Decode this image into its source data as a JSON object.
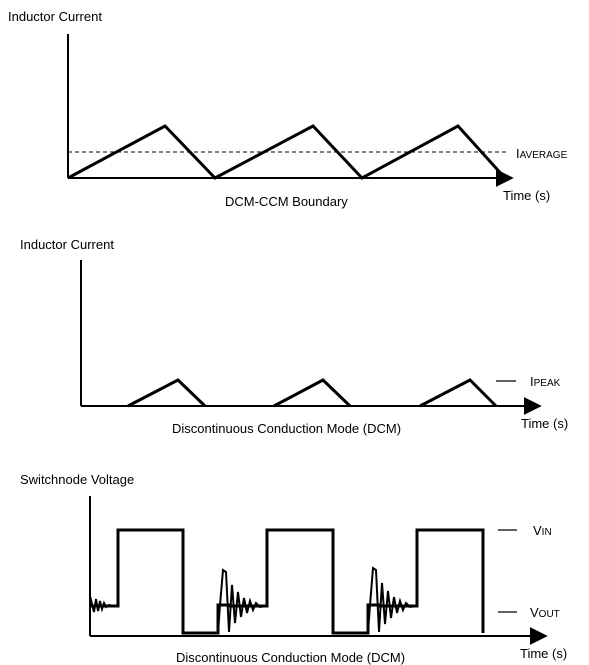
{
  "panels": {
    "top": {
      "y_label": "Inductor Current",
      "x_label": "Time (s)",
      "caption": "DCM-CCM Boundary",
      "level_label": {
        "main": "I",
        "sub": "AVERAGE"
      }
    },
    "middle": {
      "y_label": "Inductor Current",
      "x_label": "Time (s)",
      "caption": "Discontinuous Conduction Mode (DCM)",
      "level_label": {
        "main": "I",
        "sub": "PEAK"
      }
    },
    "bottom": {
      "y_label": "Switchnode Voltage",
      "x_label": "Time (s)",
      "caption": "Discontinuous Conduction Mode (DCM)",
      "high_label": {
        "main": "V",
        "sub": "IN"
      },
      "low_label": {
        "main": "V",
        "sub": "OUT"
      }
    }
  }
}
